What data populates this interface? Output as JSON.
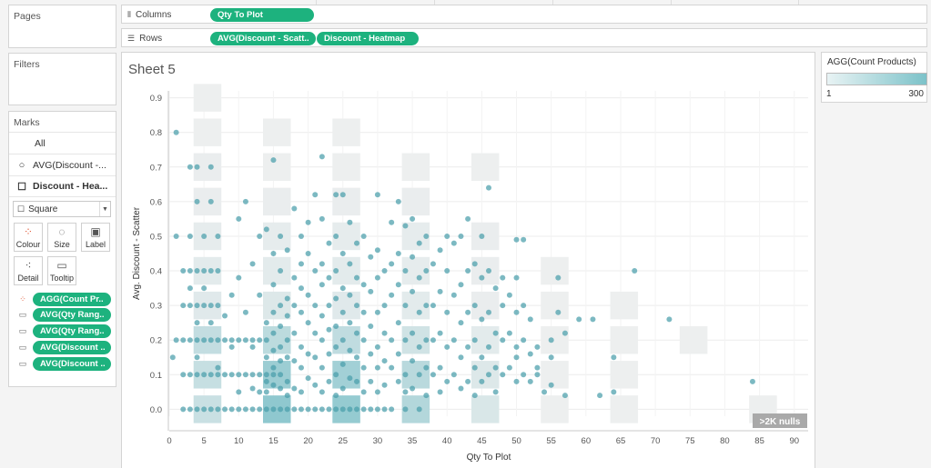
{
  "left": {
    "pages_title": "Pages",
    "filters_title": "Filters",
    "marks_title": "Marks",
    "marks_rows": [
      {
        "icon": "",
        "label": "All"
      },
      {
        "icon": "circle-icon",
        "label": "AVG(Discount -..."
      },
      {
        "icon": "square-icon",
        "label": "Discount - Hea..."
      }
    ],
    "mark_type": "Square",
    "buttons": [
      "Colour",
      "Size",
      "Label",
      "Detail",
      "Tooltip"
    ],
    "pills": [
      {
        "icon": "colour-dots-icon",
        "label": "AGG(Count Pr.."
      },
      {
        "icon": "tooltip-icon",
        "label": "AVG(Qty Rang.."
      },
      {
        "icon": "tooltip-icon",
        "label": "AVG(Qty Rang.."
      },
      {
        "icon": "tooltip-icon",
        "label": "AVG(Discount .."
      },
      {
        "icon": "tooltip-icon",
        "label": "AVG(Discount .."
      }
    ]
  },
  "shelves": {
    "columns_label": "Columns",
    "columns_pill": "Qty To Plot",
    "rows_label": "Rows",
    "rows_pills": [
      "AVG(Discount - Scatt..",
      "Discount - Heatmap"
    ]
  },
  "sheet_title": "Sheet 5",
  "legend": {
    "title": "AGG(Count Products)",
    "min": "1",
    "max": "300",
    "color_low": "#e8f3f4",
    "color_high": "#7cc2c9"
  },
  "chart_data": {
    "type": "scatter",
    "xlabel": "Qty To Plot",
    "ylabel": "Avg. Discount - Scatter",
    "xlim": [
      0,
      92
    ],
    "ylim": [
      -0.02,
      0.92
    ],
    "xticks": [
      0,
      5,
      10,
      15,
      20,
      25,
      30,
      35,
      40,
      45,
      50,
      55,
      60,
      65,
      70,
      75,
      80,
      85,
      90
    ],
    "yticks": [
      0.0,
      0.1,
      0.2,
      0.3,
      0.4,
      0.5,
      0.6,
      0.7,
      0.8,
      0.9
    ],
    "null_badge": ">2K nulls",
    "point_color": "#4a9eab",
    "heat_cells": [
      {
        "x": 2,
        "y": 0.9,
        "v": 8
      },
      {
        "x": 2,
        "y": 0.8,
        "v": 8
      },
      {
        "x": 2,
        "y": 0.7,
        "v": 20
      },
      {
        "x": 2,
        "y": 0.6,
        "v": 20
      },
      {
        "x": 2,
        "y": 0.5,
        "v": 30
      },
      {
        "x": 2,
        "y": 0.4,
        "v": 40
      },
      {
        "x": 2,
        "y": 0.3,
        "v": 50
      },
      {
        "x": 2,
        "y": 0.2,
        "v": 140
      },
      {
        "x": 2,
        "y": 0.1,
        "v": 130
      },
      {
        "x": 2,
        "y": 0.0,
        "v": 120
      },
      {
        "x": 12,
        "y": 0.8,
        "v": 8
      },
      {
        "x": 12,
        "y": 0.7,
        "v": 8
      },
      {
        "x": 12,
        "y": 0.6,
        "v": 20
      },
      {
        "x": 12,
        "y": 0.5,
        "v": 30
      },
      {
        "x": 12,
        "y": 0.4,
        "v": 40
      },
      {
        "x": 12,
        "y": 0.3,
        "v": 60
      },
      {
        "x": 12,
        "y": 0.2,
        "v": 160
      },
      {
        "x": 12,
        "y": 0.1,
        "v": 260
      },
      {
        "x": 12,
        "y": 0.0,
        "v": 300
      },
      {
        "x": 22,
        "y": 0.8,
        "v": 8
      },
      {
        "x": 22,
        "y": 0.7,
        "v": 8
      },
      {
        "x": 22,
        "y": 0.6,
        "v": 20
      },
      {
        "x": 22,
        "y": 0.5,
        "v": 30
      },
      {
        "x": 22,
        "y": 0.4,
        "v": 40
      },
      {
        "x": 22,
        "y": 0.3,
        "v": 50
      },
      {
        "x": 22,
        "y": 0.2,
        "v": 150
      },
      {
        "x": 22,
        "y": 0.1,
        "v": 240
      },
      {
        "x": 22,
        "y": 0.0,
        "v": 280
      },
      {
        "x": 32,
        "y": 0.7,
        "v": 8
      },
      {
        "x": 32,
        "y": 0.6,
        "v": 20
      },
      {
        "x": 32,
        "y": 0.5,
        "v": 30
      },
      {
        "x": 32,
        "y": 0.4,
        "v": 30
      },
      {
        "x": 32,
        "y": 0.3,
        "v": 40
      },
      {
        "x": 32,
        "y": 0.2,
        "v": 100
      },
      {
        "x": 32,
        "y": 0.1,
        "v": 170
      },
      {
        "x": 32,
        "y": 0.0,
        "v": 190
      },
      {
        "x": 42,
        "y": 0.7,
        "v": 8
      },
      {
        "x": 42,
        "y": 0.5,
        "v": 20
      },
      {
        "x": 42,
        "y": 0.4,
        "v": 20
      },
      {
        "x": 42,
        "y": 0.3,
        "v": 20
      },
      {
        "x": 42,
        "y": 0.2,
        "v": 40
      },
      {
        "x": 42,
        "y": 0.1,
        "v": 60
      },
      {
        "x": 42,
        "y": 0.0,
        "v": 70
      },
      {
        "x": 52,
        "y": 0.4,
        "v": 8
      },
      {
        "x": 52,
        "y": 0.3,
        "v": 8
      },
      {
        "x": 52,
        "y": 0.2,
        "v": 8
      },
      {
        "x": 52,
        "y": 0.1,
        "v": 8
      },
      {
        "x": 52,
        "y": 0.0,
        "v": 8
      },
      {
        "x": 62,
        "y": 0.3,
        "v": 8
      },
      {
        "x": 62,
        "y": 0.2,
        "v": 8
      },
      {
        "x": 62,
        "y": 0.1,
        "v": 8
      },
      {
        "x": 62,
        "y": 0.0,
        "v": 8
      },
      {
        "x": 72,
        "y": 0.2,
        "v": 8
      },
      {
        "x": 82,
        "y": 0.0,
        "v": 8
      }
    ],
    "points": [
      [
        1,
        0.8
      ],
      [
        3,
        0.7
      ],
      [
        4,
        0.7
      ],
      [
        6,
        0.7
      ],
      [
        4,
        0.6
      ],
      [
        6,
        0.6
      ],
      [
        1,
        0.5
      ],
      [
        3,
        0.5
      ],
      [
        5,
        0.5
      ],
      [
        7,
        0.5
      ],
      [
        2,
        0.4
      ],
      [
        3,
        0.4
      ],
      [
        4,
        0.4
      ],
      [
        5,
        0.4
      ],
      [
        6,
        0.4
      ],
      [
        7,
        0.4
      ],
      [
        2,
        0.3
      ],
      [
        3,
        0.3
      ],
      [
        4,
        0.3
      ],
      [
        5,
        0.3
      ],
      [
        6,
        0.3
      ],
      [
        7,
        0.3
      ],
      [
        1,
        0.2
      ],
      [
        2,
        0.2
      ],
      [
        3,
        0.2
      ],
      [
        4,
        0.2
      ],
      [
        5,
        0.2
      ],
      [
        6,
        0.2
      ],
      [
        7,
        0.2
      ],
      [
        8,
        0.2
      ],
      [
        9,
        0.2
      ],
      [
        10,
        0.2
      ],
      [
        11,
        0.2
      ],
      [
        12,
        0.2
      ],
      [
        13,
        0.2
      ],
      [
        14,
        0.2
      ],
      [
        2,
        0.1
      ],
      [
        3,
        0.1
      ],
      [
        4,
        0.1
      ],
      [
        5,
        0.1
      ],
      [
        6,
        0.1
      ],
      [
        7,
        0.1
      ],
      [
        8,
        0.1
      ],
      [
        9,
        0.1
      ],
      [
        10,
        0.1
      ],
      [
        11,
        0.1
      ],
      [
        12,
        0.1
      ],
      [
        13,
        0.1
      ],
      [
        14,
        0.1
      ],
      [
        15,
        0.1
      ],
      [
        16,
        0.1
      ],
      [
        2,
        0.0
      ],
      [
        3,
        0.0
      ],
      [
        4,
        0.0
      ],
      [
        5,
        0.0
      ],
      [
        6,
        0.0
      ],
      [
        7,
        0.0
      ],
      [
        8,
        0.0
      ],
      [
        9,
        0.0
      ],
      [
        10,
        0.0
      ],
      [
        11,
        0.0
      ],
      [
        12,
        0.0
      ],
      [
        13,
        0.0
      ],
      [
        14,
        0.0
      ],
      [
        15,
        0.0
      ],
      [
        16,
        0.0
      ],
      [
        17,
        0.0
      ],
      [
        18,
        0.0
      ],
      [
        19,
        0.0
      ],
      [
        20,
        0.0
      ],
      [
        21,
        0.0
      ],
      [
        22,
        0.0
      ],
      [
        23,
        0.0
      ],
      [
        24,
        0.0
      ],
      [
        25,
        0.0
      ],
      [
        26,
        0.0
      ],
      [
        27,
        0.0
      ],
      [
        28,
        0.0
      ],
      [
        29,
        0.0
      ],
      [
        30,
        0.0
      ],
      [
        31,
        0.0
      ],
      [
        32,
        0.0
      ],
      [
        34,
        0.0
      ],
      [
        36,
        0.0
      ],
      [
        0.5,
        0.15
      ],
      [
        4,
        0.25
      ],
      [
        4,
        0.15
      ],
      [
        6,
        0.25
      ],
      [
        5,
        0.35
      ],
      [
        3,
        0.35
      ],
      [
        7,
        0.12
      ],
      [
        8,
        0.27
      ],
      [
        9,
        0.33
      ],
      [
        9,
        0.18
      ],
      [
        10,
        0.38
      ],
      [
        10,
        0.05
      ],
      [
        10,
        0.55
      ],
      [
        11,
        0.6
      ],
      [
        11,
        0.28
      ],
      [
        12,
        0.42
      ],
      [
        12,
        0.18
      ],
      [
        12,
        0.06
      ],
      [
        13,
        0.5
      ],
      [
        13,
        0.33
      ],
      [
        13,
        0.05
      ],
      [
        14,
        0.52
      ],
      [
        14,
        0.25
      ],
      [
        14,
        0.15
      ],
      [
        14,
        0.08
      ],
      [
        14,
        0.05
      ],
      [
        15,
        0.45
      ],
      [
        15,
        0.36
      ],
      [
        15,
        0.28
      ],
      [
        15,
        0.22
      ],
      [
        15,
        0.17
      ],
      [
        15,
        0.12
      ],
      [
        15,
        0.07
      ],
      [
        15,
        0.72
      ],
      [
        16,
        0.5
      ],
      [
        16,
        0.4
      ],
      [
        16,
        0.3
      ],
      [
        16,
        0.24
      ],
      [
        16,
        0.18
      ],
      [
        16,
        0.14
      ],
      [
        16,
        0.06
      ],
      [
        17,
        0.46
      ],
      [
        17,
        0.32
      ],
      [
        17,
        0.27
      ],
      [
        17,
        0.2
      ],
      [
        17,
        0.15
      ],
      [
        17,
        0.08
      ],
      [
        17,
        0.04
      ],
      [
        18,
        0.58
      ],
      [
        18,
        0.38
      ],
      [
        18,
        0.3
      ],
      [
        18,
        0.22
      ],
      [
        18,
        0.14
      ],
      [
        18,
        0.06
      ],
      [
        19,
        0.5
      ],
      [
        19,
        0.42
      ],
      [
        19,
        0.35
      ],
      [
        19,
        0.28
      ],
      [
        19,
        0.18
      ],
      [
        19,
        0.12
      ],
      [
        19,
        0.05
      ],
      [
        20,
        0.54
      ],
      [
        20,
        0.45
      ],
      [
        20,
        0.33
      ],
      [
        20,
        0.25
      ],
      [
        20,
        0.16
      ],
      [
        20,
        0.09
      ],
      [
        21,
        0.62
      ],
      [
        21,
        0.4
      ],
      [
        21,
        0.3
      ],
      [
        21,
        0.22
      ],
      [
        21,
        0.15
      ],
      [
        21,
        0.07
      ],
      [
        22,
        0.73
      ],
      [
        22,
        0.55
      ],
      [
        22,
        0.42
      ],
      [
        22,
        0.36
      ],
      [
        22,
        0.27
      ],
      [
        22,
        0.2
      ],
      [
        22,
        0.12
      ],
      [
        22,
        0.05
      ],
      [
        23,
        0.48
      ],
      [
        23,
        0.38
      ],
      [
        23,
        0.3
      ],
      [
        23,
        0.23
      ],
      [
        23,
        0.16
      ],
      [
        23,
        0.08
      ],
      [
        24,
        0.62
      ],
      [
        24,
        0.5
      ],
      [
        24,
        0.4
      ],
      [
        24,
        0.32
      ],
      [
        24,
        0.24
      ],
      [
        24,
        0.18
      ],
      [
        24,
        0.1
      ],
      [
        24,
        0.04
      ],
      [
        25,
        0.62
      ],
      [
        25,
        0.45
      ],
      [
        25,
        0.35
      ],
      [
        25,
        0.28
      ],
      [
        25,
        0.2
      ],
      [
        25,
        0.13
      ],
      [
        25,
        0.06
      ],
      [
        26,
        0.54
      ],
      [
        26,
        0.42
      ],
      [
        26,
        0.33
      ],
      [
        26,
        0.25
      ],
      [
        26,
        0.17
      ],
      [
        26,
        0.09
      ],
      [
        27,
        0.48
      ],
      [
        27,
        0.38
      ],
      [
        27,
        0.3
      ],
      [
        27,
        0.22
      ],
      [
        27,
        0.15
      ],
      [
        27,
        0.08
      ],
      [
        28,
        0.5
      ],
      [
        28,
        0.36
      ],
      [
        28,
        0.28
      ],
      [
        28,
        0.2
      ],
      [
        28,
        0.12
      ],
      [
        28,
        0.05
      ],
      [
        29,
        0.44
      ],
      [
        29,
        0.34
      ],
      [
        29,
        0.24
      ],
      [
        29,
        0.16
      ],
      [
        29,
        0.08
      ],
      [
        30,
        0.62
      ],
      [
        30,
        0.46
      ],
      [
        30,
        0.38
      ],
      [
        30,
        0.28
      ],
      [
        30,
        0.18
      ],
      [
        30,
        0.12
      ],
      [
        30,
        0.05
      ],
      [
        31,
        0.4
      ],
      [
        31,
        0.3
      ],
      [
        31,
        0.22
      ],
      [
        31,
        0.14
      ],
      [
        31,
        0.07
      ],
      [
        32,
        0.54
      ],
      [
        32,
        0.42
      ],
      [
        32,
        0.33
      ],
      [
        32,
        0.2
      ],
      [
        32,
        0.12
      ],
      [
        33,
        0.6
      ],
      [
        33,
        0.45
      ],
      [
        33,
        0.36
      ],
      [
        33,
        0.25
      ],
      [
        33,
        0.16
      ],
      [
        33,
        0.08
      ],
      [
        34,
        0.53
      ],
      [
        34,
        0.4
      ],
      [
        34,
        0.3
      ],
      [
        34,
        0.2
      ],
      [
        34,
        0.1
      ],
      [
        34,
        0.05
      ],
      [
        35,
        0.55
      ],
      [
        35,
        0.44
      ],
      [
        35,
        0.34
      ],
      [
        35,
        0.22
      ],
      [
        35,
        0.14
      ],
      [
        35,
        0.06
      ],
      [
        36,
        0.48
      ],
      [
        36,
        0.38
      ],
      [
        36,
        0.28
      ],
      [
        36,
        0.18
      ],
      [
        36,
        0.1
      ],
      [
        37,
        0.5
      ],
      [
        37,
        0.4
      ],
      [
        37,
        0.3
      ],
      [
        37,
        0.2
      ],
      [
        37,
        0.12
      ],
      [
        37,
        0.04
      ],
      [
        38,
        0.42
      ],
      [
        38,
        0.3
      ],
      [
        38,
        0.2
      ],
      [
        38,
        0.1
      ],
      [
        39,
        0.46
      ],
      [
        39,
        0.34
      ],
      [
        39,
        0.22
      ],
      [
        39,
        0.12
      ],
      [
        39,
        0.05
      ],
      [
        40,
        0.5
      ],
      [
        40,
        0.4
      ],
      [
        40,
        0.28
      ],
      [
        40,
        0.18
      ],
      [
        40,
        0.08
      ],
      [
        41,
        0.48
      ],
      [
        41,
        0.33
      ],
      [
        41,
        0.2
      ],
      [
        41,
        0.1
      ],
      [
        42,
        0.5
      ],
      [
        42,
        0.36
      ],
      [
        42,
        0.25
      ],
      [
        42,
        0.15
      ],
      [
        42,
        0.06
      ],
      [
        43,
        0.55
      ],
      [
        43,
        0.4
      ],
      [
        43,
        0.28
      ],
      [
        43,
        0.18
      ],
      [
        43,
        0.08
      ],
      [
        44,
        0.42
      ],
      [
        44,
        0.3
      ],
      [
        44,
        0.2
      ],
      [
        44,
        0.12
      ],
      [
        44,
        0.04
      ],
      [
        45,
        0.5
      ],
      [
        45,
        0.38
      ],
      [
        45,
        0.26
      ],
      [
        45,
        0.15
      ],
      [
        45,
        0.08
      ],
      [
        46,
        0.64
      ],
      [
        46,
        0.4
      ],
      [
        46,
        0.28
      ],
      [
        46,
        0.18
      ],
      [
        46,
        0.1
      ],
      [
        47,
        0.35
      ],
      [
        47,
        0.22
      ],
      [
        47,
        0.12
      ],
      [
        47,
        0.05
      ],
      [
        48,
        0.38
      ],
      [
        48,
        0.3
      ],
      [
        48,
        0.2
      ],
      [
        48,
        0.1
      ],
      [
        49,
        0.33
      ],
      [
        49,
        0.22
      ],
      [
        49,
        0.12
      ],
      [
        50,
        0.49
      ],
      [
        50,
        0.38
      ],
      [
        50,
        0.28
      ],
      [
        50,
        0.18
      ],
      [
        50,
        0.08
      ],
      [
        51,
        0.49
      ],
      [
        51,
        0.3
      ],
      [
        51,
        0.2
      ],
      [
        51,
        0.1
      ],
      [
        52,
        0.26
      ],
      [
        52,
        0.16
      ],
      [
        52,
        0.08
      ],
      [
        53,
        0.18
      ],
      [
        53,
        0.1
      ],
      [
        54,
        0.05
      ],
      [
        55,
        0.07
      ],
      [
        55,
        0.15
      ],
      [
        56,
        0.28
      ],
      [
        56,
        0.38
      ],
      [
        57,
        0.04
      ],
      [
        57,
        0.22
      ],
      [
        59,
        0.26
      ],
      [
        61,
        0.26
      ],
      [
        62,
        0.04
      ],
      [
        64,
        0.05
      ],
      [
        64,
        0.15
      ],
      [
        67,
        0.4
      ],
      [
        72,
        0.26
      ],
      [
        84,
        0.08
      ],
      [
        55,
        0.2
      ],
      [
        53,
        0.12
      ],
      [
        50,
        0.15
      ]
    ]
  }
}
